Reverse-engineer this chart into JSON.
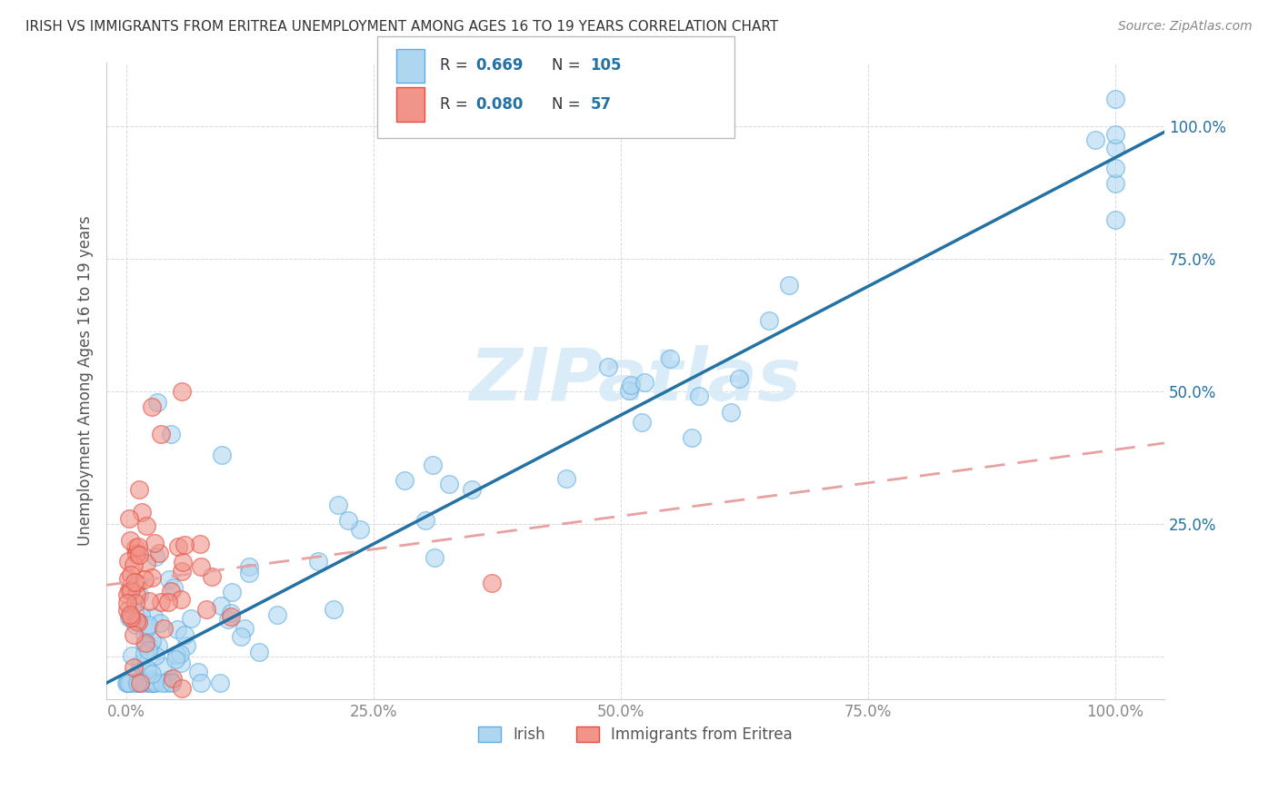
{
  "title": "IRISH VS IMMIGRANTS FROM ERITREA UNEMPLOYMENT AMONG AGES 16 TO 19 YEARS CORRELATION CHART",
  "source": "Source: ZipAtlas.com",
  "ylabel": "Unemployment Among Ages 16 to 19 years",
  "xlim": [
    -0.02,
    1.05
  ],
  "ylim": [
    -0.08,
    1.12
  ],
  "x_ticks": [
    0.0,
    0.25,
    0.5,
    0.75,
    1.0
  ],
  "y_ticks": [
    0.0,
    0.25,
    0.5,
    0.75,
    1.0
  ],
  "x_tick_labels": [
    "0.0%",
    "25.0%",
    "50.0%",
    "75.0%",
    "100.0%"
  ],
  "y_tick_labels": [
    "",
    "25.0%",
    "50.0%",
    "75.0%",
    "100.0%"
  ],
  "irish_R": 0.669,
  "irish_N": 105,
  "eritrea_R": 0.08,
  "eritrea_N": 57,
  "irish_color": "#aed6f1",
  "irish_edge": "#5dade2",
  "eritrea_color": "#f1948a",
  "eritrea_edge": "#e74c3c",
  "irish_line_color": "#2471a3",
  "eritrea_line_color": "#e8a0a0",
  "watermark_color": "#d6eaf8",
  "background_color": "#ffffff",
  "grid_color": "#d5d8dc",
  "irish_line_slope": 0.97,
  "irish_line_intercept": -0.03,
  "eritrea_line_slope": 0.25,
  "eritrea_line_intercept": 0.14,
  "legend_box_color": "#ffffff",
  "legend_box_edge": "#cccccc",
  "tick_color_y": "#2471a3",
  "tick_color_x": "#888888",
  "title_color": "#333333",
  "source_color": "#888888",
  "ylabel_color": "#555555"
}
